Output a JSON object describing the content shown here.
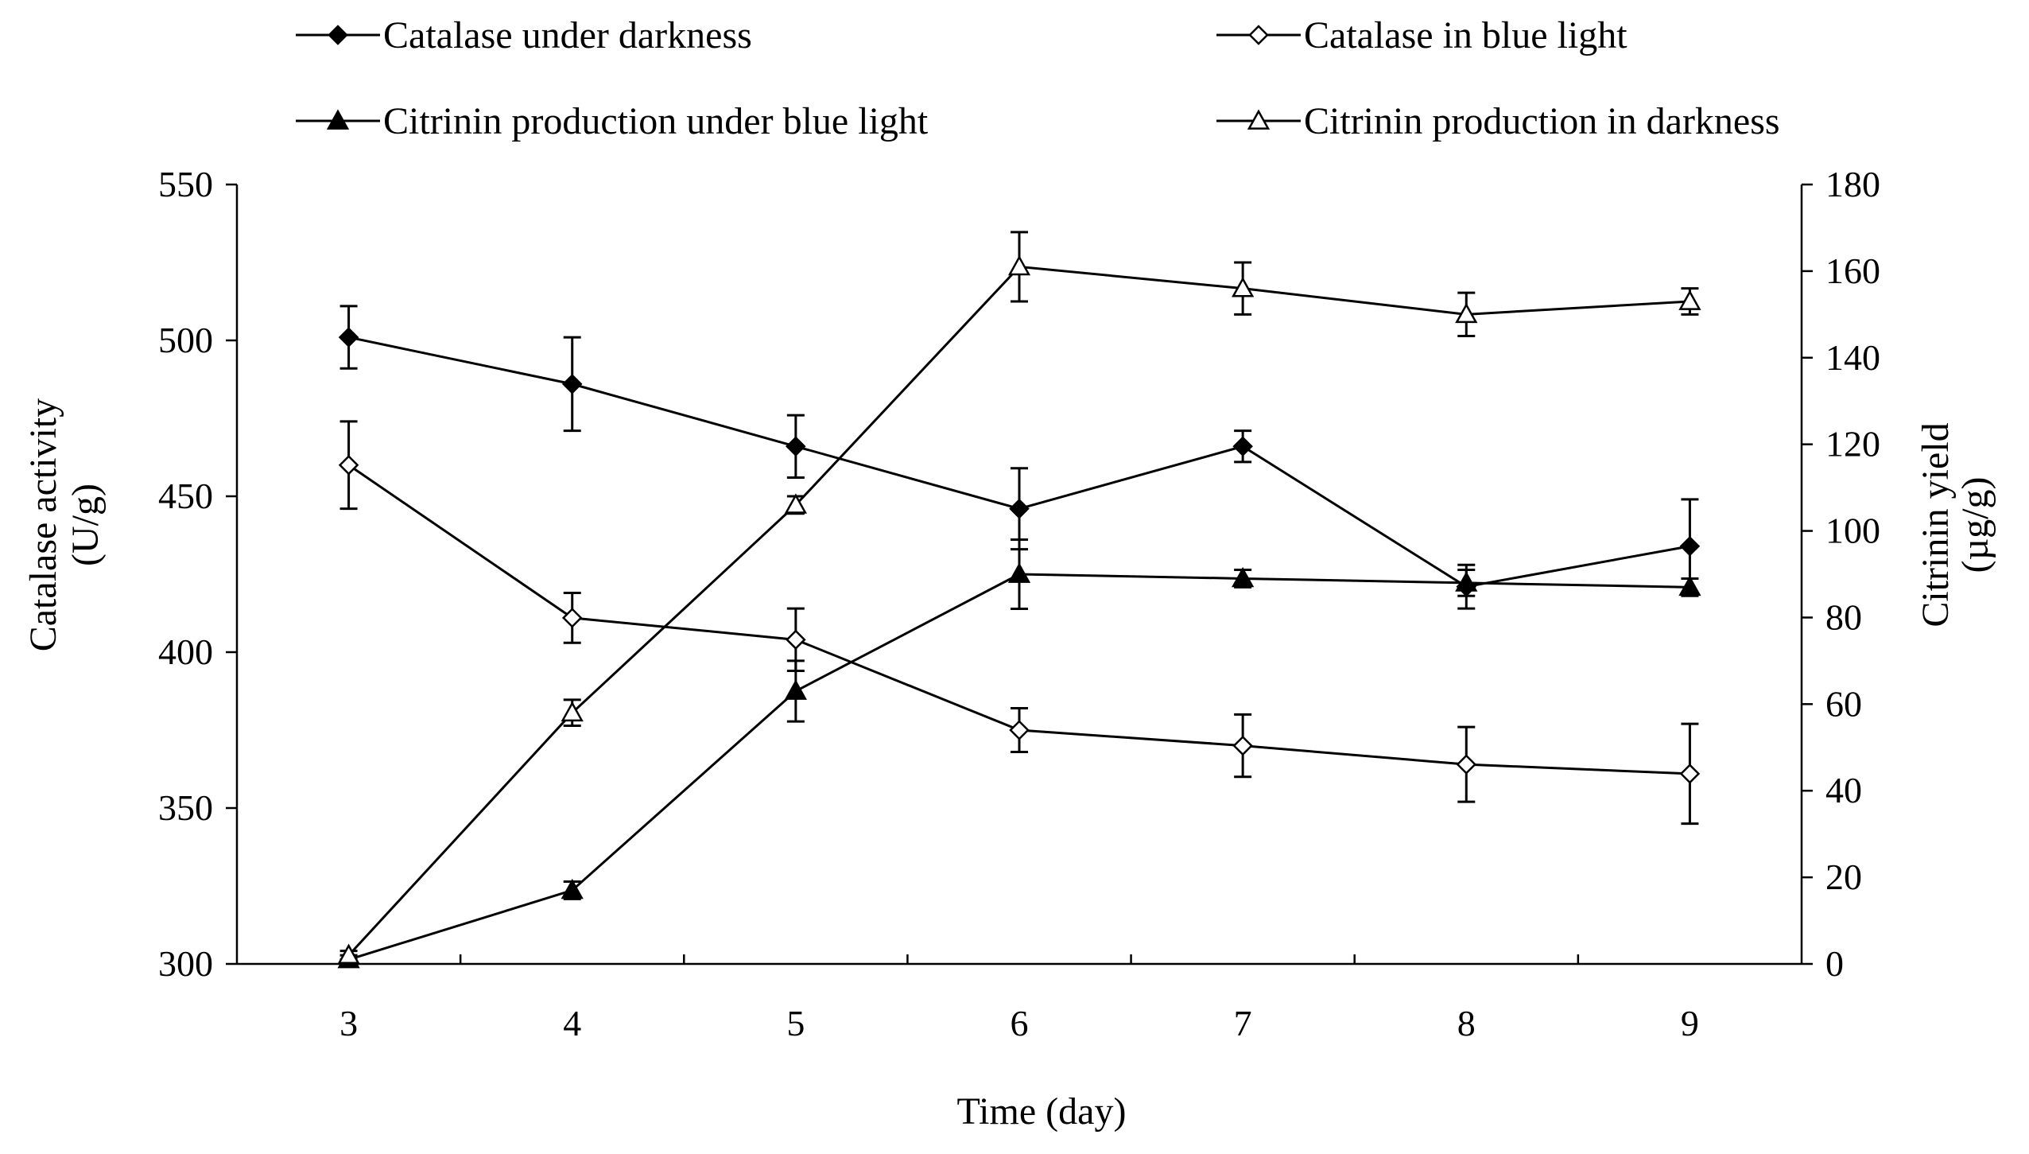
{
  "chart_data": {
    "type": "line",
    "title": "",
    "xlabel": "Time (day)",
    "ylabel": [
      "Catalase activity",
      "(U/g)"
    ],
    "y2label": [
      "Citrinin yield",
      "(µg/g)"
    ],
    "categories": [
      "3",
      "4",
      "5",
      "6",
      "7",
      "8",
      "9"
    ],
    "ylim": [
      300,
      550
    ],
    "y2lim": [
      0,
      180
    ],
    "yticks": [
      "300",
      "350",
      "400",
      "450",
      "500",
      "550"
    ],
    "y2ticks": [
      "0",
      "20",
      "40",
      "60",
      "80",
      "100",
      "120",
      "140",
      "160",
      "180"
    ],
    "legend_position": "top",
    "series": [
      {
        "name": "Catalase under darkness",
        "axis": "left",
        "marker": "diamond-filled",
        "values": [
          501,
          486,
          466,
          446,
          466,
          421,
          434
        ],
        "errors": [
          10,
          15,
          10,
          13,
          5,
          7,
          15
        ]
      },
      {
        "name": "Catalase in blue light",
        "axis": "left",
        "marker": "diamond-open",
        "values": [
          460,
          411,
          404,
          375,
          370,
          364,
          361
        ],
        "errors": [
          14,
          8,
          10,
          7,
          10,
          12,
          16
        ]
      },
      {
        "name": "Citrinin production under blue light",
        "axis": "right",
        "marker": "triangle-filled",
        "values": [
          1,
          17,
          63,
          90,
          89,
          88,
          87
        ],
        "errors": [
          1,
          2,
          7,
          8,
          2,
          3,
          2
        ]
      },
      {
        "name": "Citrinin production in darkness",
        "axis": "right",
        "marker": "triangle-open",
        "values": [
          2,
          58,
          106,
          161,
          156,
          150,
          153
        ],
        "errors": [
          1,
          3,
          2,
          8,
          6,
          5,
          3
        ]
      }
    ]
  }
}
